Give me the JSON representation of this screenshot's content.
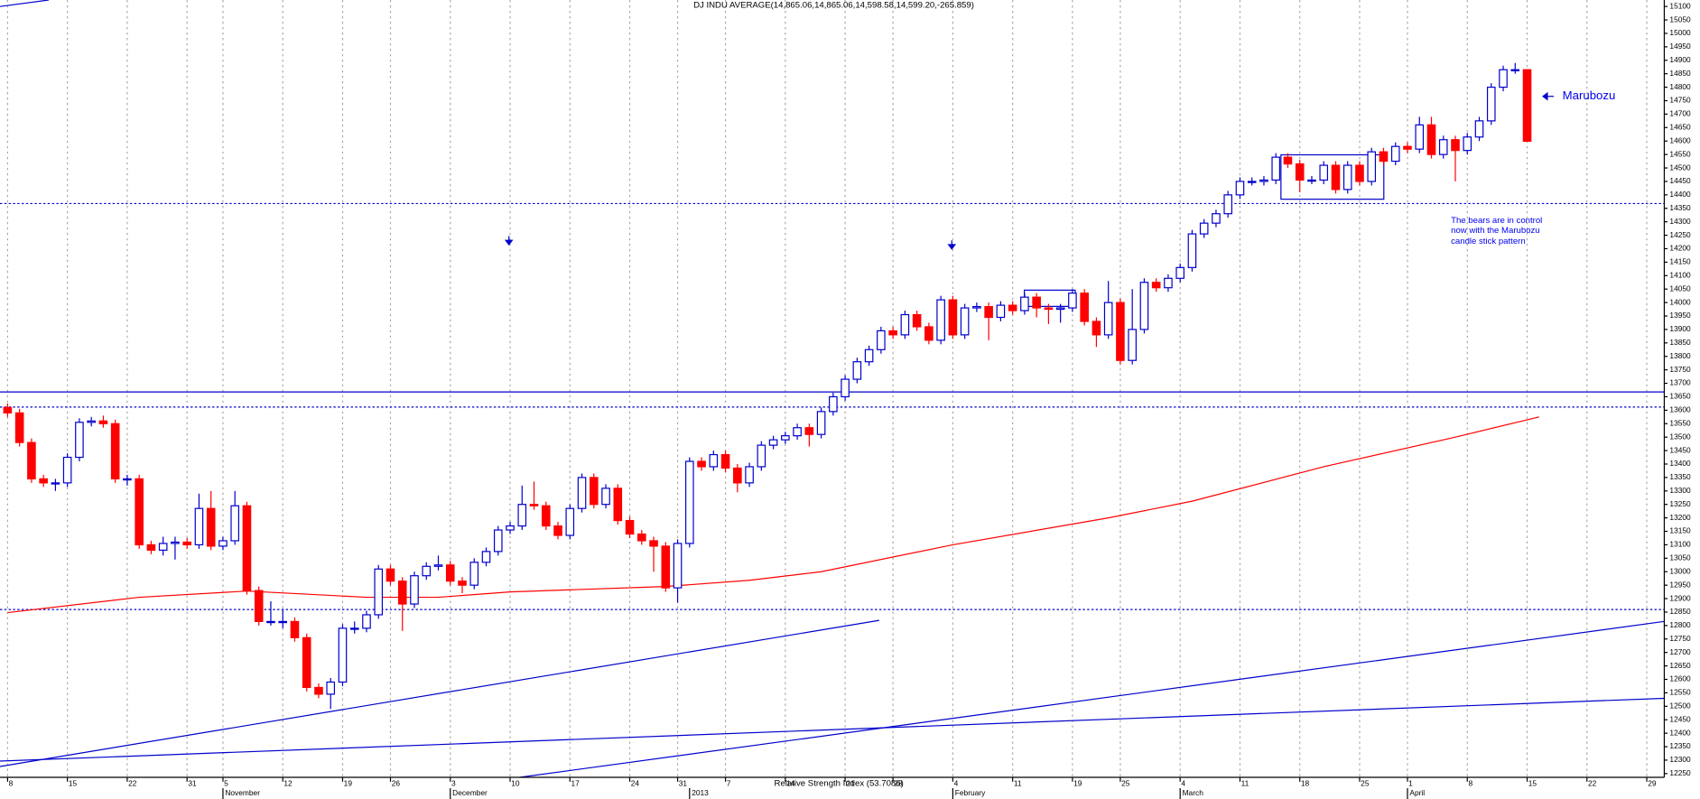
{
  "chart_data": {
    "type": "candlestick",
    "title": "DJ INDU AVERAGE(14,865.06,14,865.06,14,598.58,14,599.20,-265.859)",
    "indicator_label": "Relative Strength Index (53.7086)",
    "annotations": [
      "Marubozu",
      "The bears are in control",
      "now with the Marubozu",
      "candle stick pattern"
    ],
    "categories": [
      "8",
      null,
      null,
      null,
      null,
      "15",
      null,
      null,
      null,
      null,
      "22",
      null,
      null,
      null,
      null,
      "31",
      null,
      null,
      "5",
      null,
      null,
      null,
      null,
      "12",
      null,
      null,
      null,
      null,
      "19",
      null,
      null,
      null,
      "26",
      null,
      null,
      null,
      null,
      "3",
      null,
      null,
      null,
      null,
      "10",
      null,
      null,
      null,
      null,
      "17",
      null,
      null,
      null,
      null,
      "24",
      null,
      null,
      null,
      "31",
      null,
      null,
      null,
      "7",
      null,
      null,
      null,
      null,
      "14",
      null,
      null,
      null,
      null,
      "21",
      null,
      null,
      null,
      "28",
      null,
      null,
      null,
      null,
      "4",
      null,
      null,
      null,
      null,
      "11",
      null,
      null,
      null,
      null,
      "19",
      null,
      null,
      null,
      "25",
      null,
      null,
      null,
      null,
      "4",
      null,
      null,
      null,
      null,
      "11",
      null,
      null,
      null,
      null,
      "18",
      null,
      null,
      null,
      null,
      "25",
      null,
      null,
      null,
      "1",
      null,
      null,
      null,
      null,
      "8",
      null,
      null,
      null,
      null,
      "15",
      null,
      null,
      null,
      null,
      "22",
      null,
      null,
      null,
      null,
      "29"
    ],
    "month_labels": [
      {
        "index": 18,
        "label": "November"
      },
      {
        "index": 37,
        "label": "December"
      },
      {
        "index": 57,
        "label": "2013"
      },
      {
        "index": 79,
        "label": "February"
      },
      {
        "index": 98,
        "label": "March"
      },
      {
        "index": 117,
        "label": "April"
      }
    ],
    "open": [
      13610,
      13590,
      13480,
      13345,
      13330,
      13330,
      13425,
      13555,
      13560,
      13550,
      13345,
      13345,
      13100,
      13080,
      13105,
      13110,
      13100,
      13235,
      13095,
      13115,
      13245,
      12930,
      12815,
      12815,
      12815,
      12755,
      12570,
      12545,
      12590,
      12790,
      12790,
      12840,
      13010,
      12965,
      12880,
      12985,
      13020,
      13025,
      12965,
      12950,
      13035,
      13075,
      13155,
      13170,
      13250,
      13245,
      13170,
      13135,
      13235,
      13350,
      13250,
      13310,
      13190,
      13140,
      13115,
      13095,
      12940,
      13105,
      13410,
      13390,
      13435,
      13385,
      13330,
      13390,
      13470,
      13490,
      13505,
      13535,
      13510,
      13595,
      13650,
      13715,
      13780,
      13825,
      13895,
      13880,
      13955,
      13910,
      13860,
      14010,
      13880,
      13980,
      13985,
      13945,
      13990,
      13970,
      14020,
      13980,
      13975,
      13980,
      14035,
      13930,
      13880,
      14000,
      13785,
      13900,
      14075,
      14055,
      14090,
      14130,
      14255,
      14295,
      14330,
      14400,
      14450,
      14450,
      14455,
      14540,
      14515,
      14455,
      14455,
      14510,
      14420,
      14510,
      14450,
      14560,
      14525,
      14580,
      14570,
      14660,
      14550,
      14605,
      14565,
      14615,
      14675,
      14800,
      14865,
      14865.06,
      null,
      null,
      null,
      null,
      null,
      null,
      null,
      null,
      null,
      null
    ],
    "high": [
      13625,
      13605,
      13495,
      13360,
      13345,
      13440,
      13570,
      13575,
      13580,
      13565,
      13360,
      13360,
      13115,
      13130,
      13130,
      13125,
      13290,
      13300,
      13130,
      13300,
      13260,
      12945,
      12890,
      12860,
      12830,
      12770,
      12585,
      12605,
      12805,
      12815,
      12855,
      13025,
      13025,
      12980,
      13000,
      13035,
      13060,
      13040,
      12980,
      13050,
      13090,
      13170,
      13185,
      13320,
      13335,
      13260,
      13185,
      13250,
      13365,
      13365,
      13325,
      13325,
      13205,
      13155,
      13130,
      13110,
      13120,
      13425,
      13425,
      13450,
      13450,
      13400,
      13405,
      13485,
      13505,
      13520,
      13550,
      13550,
      13610,
      13665,
      13730,
      13795,
      13840,
      13910,
      13910,
      13970,
      13970,
      13925,
      14025,
      14025,
      13995,
      14000,
      14000,
      14005,
      14005,
      14035,
      14035,
      13995,
      13995,
      14050,
      14050,
      13945,
      14080,
      14015,
      14050,
      14090,
      14090,
      14105,
      14145,
      14270,
      14310,
      14345,
      14415,
      14465,
      14465,
      14470,
      14555,
      14555,
      14530,
      14470,
      14525,
      14525,
      14525,
      14525,
      14575,
      14575,
      14595,
      14595,
      14690,
      14690,
      14620,
      14620,
      14630,
      14690,
      14815,
      14880,
      14890,
      14865.06,
      null,
      null,
      null,
      null,
      null,
      null,
      null,
      null,
      null,
      null
    ],
    "low": [
      13575,
      13465,
      13330,
      13315,
      13300,
      13315,
      13410,
      13540,
      13535,
      13330,
      13320,
      13085,
      13065,
      13060,
      13045,
      13085,
      13085,
      13080,
      13080,
      13100,
      12915,
      12800,
      12800,
      12790,
      12740,
      12555,
      12530,
      12490,
      12575,
      12770,
      12775,
      12825,
      12950,
      12780,
      12865,
      12970,
      13005,
      12950,
      12920,
      12935,
      13020,
      13060,
      13140,
      13155,
      13230,
      13155,
      13120,
      13120,
      13220,
      13235,
      13235,
      13175,
      13125,
      13100,
      13000,
      12925,
      12885,
      13090,
      13375,
      13375,
      13370,
      13295,
      13315,
      13375,
      13455,
      13475,
      13490,
      13465,
      13495,
      13580,
      13635,
      13700,
      13765,
      13810,
      13865,
      13865,
      13895,
      13845,
      13845,
      13865,
      13865,
      13965,
      13860,
      13930,
      13955,
      13955,
      13945,
      13920,
      13925,
      13965,
      13915,
      13835,
      13865,
      13770,
      13770,
      13885,
      14040,
      14040,
      14075,
      14115,
      14240,
      14280,
      14315,
      14385,
      14435,
      14435,
      14440,
      14500,
      14410,
      14440,
      14440,
      14405,
      14405,
      14435,
      14435,
      14510,
      14510,
      14555,
      14555,
      14535,
      14535,
      14450,
      14550,
      14600,
      14660,
      14785,
      14850,
      14598.58,
      null,
      null,
      null,
      null,
      null,
      null,
      null,
      null,
      null,
      null
    ],
    "close": [
      13590,
      13480,
      13345,
      13330,
      13330,
      13425,
      13555,
      13560,
      13550,
      13345,
      13345,
      13100,
      13080,
      13105,
      13110,
      13100,
      13235,
      13095,
      13115,
      13245,
      12930,
      12815,
      12815,
      12815,
      12755,
      12570,
      12545,
      12590,
      12790,
      12790,
      12840,
      13010,
      12965,
      12880,
      12985,
      13020,
      13025,
      12965,
      12950,
      13035,
      13075,
      13155,
      13170,
      13250,
      13245,
      13170,
      13135,
      13235,
      13350,
      13250,
      13310,
      13190,
      13140,
      13115,
      13095,
      12940,
      13105,
      13410,
      13390,
      13435,
      13385,
      13330,
      13390,
      13470,
      13490,
      13505,
      13535,
      13510,
      13595,
      13650,
      13715,
      13780,
      13825,
      13895,
      13880,
      13955,
      13910,
      13860,
      14010,
      13880,
      13980,
      13985,
      13945,
      13990,
      13970,
      14020,
      13980,
      13975,
      13980,
      14035,
      13930,
      13880,
      14000,
      13785,
      13900,
      14075,
      14055,
      14090,
      14130,
      14255,
      14295,
      14330,
      14400,
      14450,
      14450,
      14455,
      14540,
      14515,
      14455,
      14455,
      14510,
      14420,
      14510,
      14450,
      14560,
      14525,
      14580,
      14570,
      14660,
      14550,
      14605,
      14565,
      14615,
      14675,
      14800,
      14865,
      14865,
      14599.2,
      null,
      null,
      null,
      null,
      null,
      null,
      null,
      null,
      null,
      null
    ],
    "up_color": "#0000cc",
    "down_color": "#ff0000",
    "moving_average": {
      "color": "#ff0000",
      "x": [
        0,
        11,
        20,
        30,
        36,
        42,
        55,
        62,
        68,
        79,
        92,
        99,
        110,
        121,
        128
      ],
      "values": [
        12848,
        12905,
        12928,
        12905,
        12905,
        12925,
        12945,
        12968,
        13000,
        13100,
        13200,
        13262,
        13390,
        13500,
        13575
      ]
    },
    "ylim": [
      12236,
      15124
    ],
    "yticks": [
      12250,
      12300,
      12350,
      12400,
      12450,
      12500,
      12550,
      12600,
      12650,
      12700,
      12750,
      12800,
      12850,
      12900,
      12950,
      13000,
      13050,
      13100,
      13150,
      13200,
      13250,
      13300,
      13350,
      13400,
      13450,
      13500,
      13550,
      13600,
      13650,
      13700,
      13750,
      13800,
      13850,
      13900,
      13950,
      14000,
      14050,
      14100,
      14150,
      14200,
      14250,
      14300,
      14350,
      14400,
      14450,
      14500,
      14550,
      14600,
      14650,
      14700,
      14750,
      14800,
      14850,
      14900,
      14950,
      15000,
      15050,
      15100
    ],
    "grid": true
  }
}
